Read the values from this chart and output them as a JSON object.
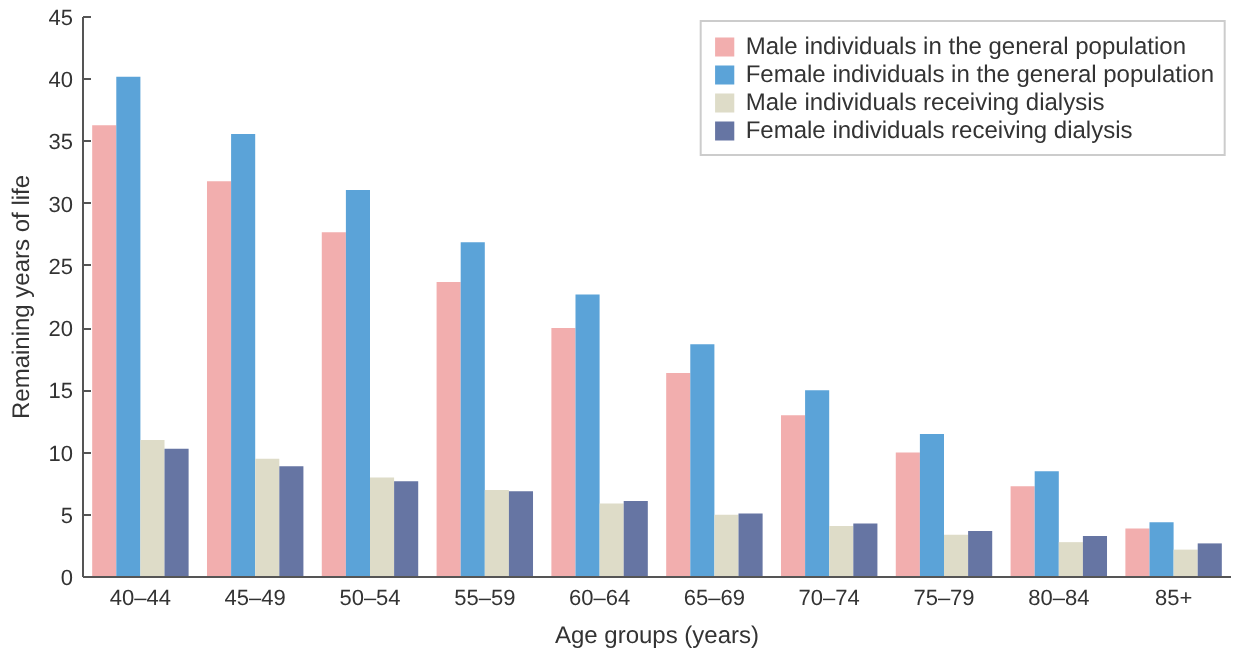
{
  "chart_data": {
    "type": "bar",
    "xlabel": "Age groups (years)",
    "ylabel": "Remaining years of life",
    "categories": [
      "40–44",
      "45–49",
      "50–54",
      "55–59",
      "60–64",
      "65–69",
      "70–74",
      "75–79",
      "80–84",
      "85+"
    ],
    "series": [
      {
        "name": "Male individuals in the general population",
        "color": "#f2aeae",
        "values": [
          36.3,
          31.8,
          27.7,
          23.7,
          20.0,
          16.4,
          13.0,
          10.0,
          7.3,
          3.9
        ]
      },
      {
        "name": "Female individuals in the general population",
        "color": "#5ba3d8",
        "values": [
          40.2,
          35.6,
          31.1,
          26.9,
          22.7,
          18.7,
          15.0,
          11.5,
          8.5,
          4.4
        ]
      },
      {
        "name": "Male individuals receiving dialysis",
        "color": "#dedcc8",
        "values": [
          11.0,
          9.5,
          8.0,
          7.0,
          5.9,
          5.0,
          4.1,
          3.4,
          2.8,
          2.2
        ]
      },
      {
        "name": "Female individuals receiving dialysis",
        "color": "#6675a3",
        "values": [
          10.3,
          8.9,
          7.7,
          6.9,
          6.1,
          5.1,
          4.3,
          3.7,
          3.3,
          2.7
        ]
      }
    ],
    "ylim": [
      0,
      45
    ],
    "yticks": [
      0,
      5,
      10,
      15,
      20,
      25,
      30,
      35,
      40,
      45
    ],
    "grid": false,
    "legend": "top right"
  }
}
